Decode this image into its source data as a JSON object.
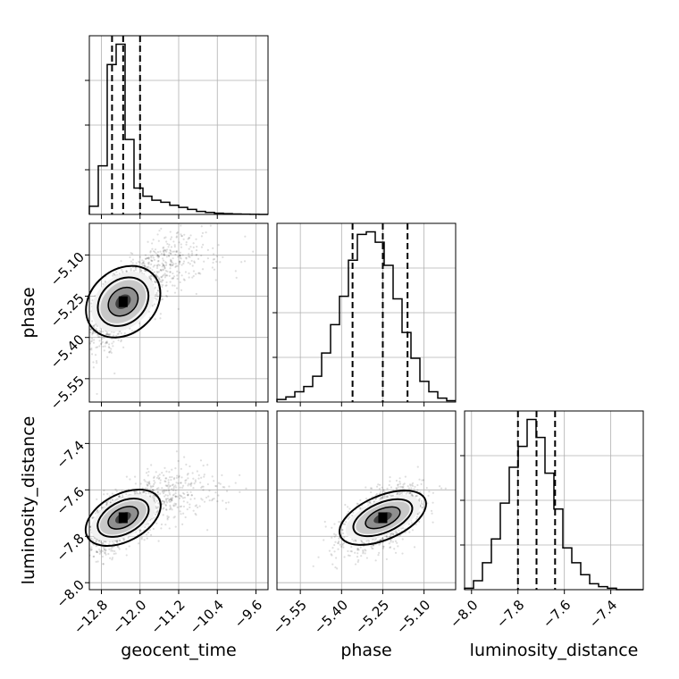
{
  "chart_data": {
    "type": "corner",
    "parameters": [
      "geocent_time",
      "phase",
      "luminosity_distance"
    ],
    "grid": true,
    "axes": {
      "geocent_time": {
        "label": "geocent_time",
        "range": [
          -13.05,
          -9.35
        ],
        "ticks": [
          -12.8,
          -12.0,
          -11.2,
          -10.4,
          -9.6
        ],
        "tick_labels": [
          "−12.8",
          "−12.0",
          "−11.2",
          "−10.4",
          "−9.6"
        ]
      },
      "phase": {
        "label": "phase",
        "range": [
          -5.635,
          -4.985
        ],
        "ticks": [
          -5.55,
          -5.4,
          -5.25,
          -5.1
        ],
        "tick_labels": [
          "−5.55",
          "−5.40",
          "−5.25",
          "−5.10"
        ]
      },
      "luminosity_distance": {
        "label": "luminosity_distance",
        "range": [
          -8.03,
          -7.26
        ],
        "ticks": [
          -8.0,
          -7.8,
          -7.6,
          -7.4
        ],
        "tick_labels": [
          "−8.0",
          "−7.8",
          "−7.6",
          "−7.4"
        ]
      }
    },
    "histograms": [
      {
        "param": "geocent_time",
        "edges_range": [
          -13.05,
          -9.35
        ],
        "bins": 20,
        "counts": [
          0.04,
          0.24,
          0.74,
          0.84,
          0.37,
          0.13,
          0.09,
          0.07,
          0.06,
          0.045,
          0.035,
          0.025,
          0.015,
          0.01,
          0.006,
          0.004,
          0.002,
          0.001,
          0.0005,
          0
        ],
        "quantiles": [
          -12.58,
          -12.35,
          -12.0
        ]
      },
      {
        "param": "phase",
        "edges_range": [
          -5.635,
          -4.985
        ],
        "bins": 20,
        "counts": [
          0.01,
          0.02,
          0.04,
          0.06,
          0.1,
          0.19,
          0.3,
          0.41,
          0.55,
          0.65,
          0.66,
          0.62,
          0.53,
          0.4,
          0.27,
          0.17,
          0.08,
          0.04,
          0.015,
          0.005
        ],
        "quantiles": [
          -5.36,
          -5.25,
          -5.16
        ]
      },
      {
        "param": "luminosity_distance",
        "edges_range": [
          -8.03,
          -7.26
        ],
        "bins": 20,
        "counts": [
          0.005,
          0.03,
          0.09,
          0.17,
          0.29,
          0.41,
          0.48,
          0.57,
          0.51,
          0.39,
          0.27,
          0.14,
          0.09,
          0.05,
          0.02,
          0.01,
          0.005,
          0,
          0,
          0
        ],
        "quantiles": [
          -7.8,
          -7.72,
          -7.64
        ]
      }
    ],
    "joint_distributions": [
      {
        "x": "geocent_time",
        "y": "phase",
        "center": [
          -12.35,
          -5.27
        ],
        "spread": [
          0.35,
          0.08
        ],
        "correlation": 0.65
      },
      {
        "x": "geocent_time",
        "y": "luminosity_distance",
        "center": [
          -12.35,
          -7.72
        ],
        "spread": [
          0.35,
          0.07
        ],
        "correlation": 0.55
      },
      {
        "x": "phase",
        "y": "luminosity_distance",
        "center": [
          -5.25,
          -7.72
        ],
        "spread": [
          0.07,
          0.065
        ],
        "correlation": 0.55
      }
    ]
  }
}
